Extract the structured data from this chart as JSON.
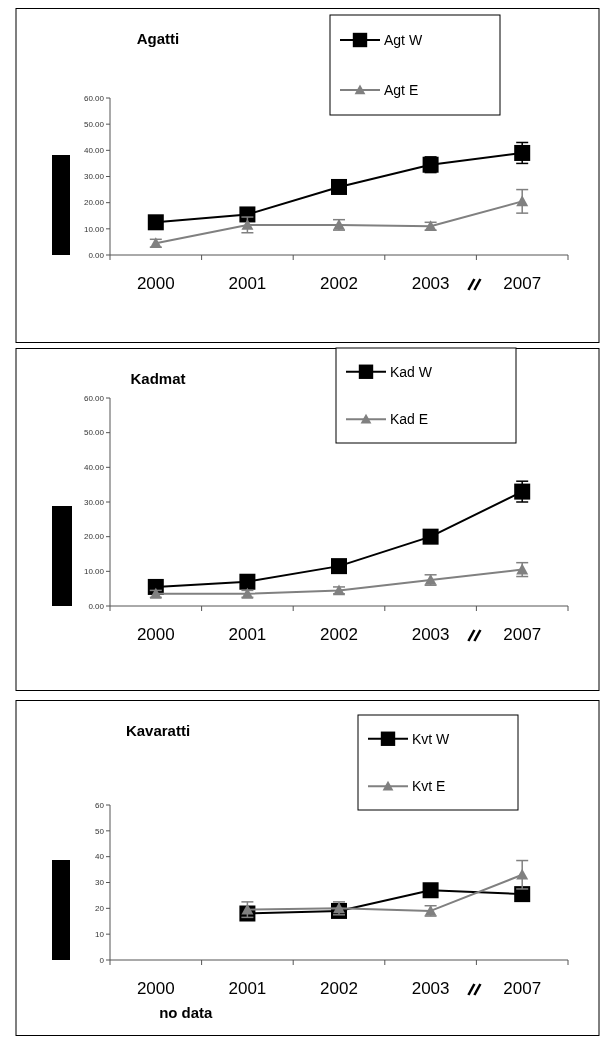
{
  "chart_data": [
    {
      "type": "line",
      "title": "Agatti",
      "categories": [
        "2000",
        "2001",
        "2002",
        "2003",
        "2007"
      ],
      "ylim": [
        0,
        60
      ],
      "yticks": [
        {
          "value": 0,
          "label": "0.00"
        },
        {
          "value": 10,
          "label": "10.00"
        },
        {
          "value": 20,
          "label": "20.00"
        },
        {
          "value": 30,
          "label": "30.00"
        },
        {
          "value": 40,
          "label": "40.00"
        },
        {
          "value": 50,
          "label": "50.00"
        },
        {
          "value": 60,
          "label": "60.00"
        }
      ],
      "legend": "top right",
      "grid": false,
      "series": [
        {
          "name": "Agt W",
          "color": "#000000",
          "marker": "square",
          "values": [
            12.5,
            15.5,
            26,
            34.5,
            39
          ],
          "errors": [
            1.5,
            1,
            2,
            3,
            4
          ]
        },
        {
          "name": "Agt E",
          "color": "#808080",
          "marker": "triangle",
          "values": [
            4.5,
            11.5,
            11.5,
            11,
            20.5
          ],
          "errors": [
            1.5,
            3,
            2,
            1.5,
            4.5
          ]
        }
      ]
    },
    {
      "type": "line",
      "title": "Kadmat",
      "categories": [
        "2000",
        "2001",
        "2002",
        "2003",
        "2007"
      ],
      "ylim": [
        0,
        60
      ],
      "yticks": [
        {
          "value": 0,
          "label": "0.00"
        },
        {
          "value": 10,
          "label": "10.00"
        },
        {
          "value": 20,
          "label": "20.00"
        },
        {
          "value": 30,
          "label": "30.00"
        },
        {
          "value": 40,
          "label": "40.00"
        },
        {
          "value": 50,
          "label": "50.00"
        },
        {
          "value": 60,
          "label": "60.00"
        }
      ],
      "legend": "top right",
      "grid": false,
      "series": [
        {
          "name": "Kad W",
          "color": "#000000",
          "marker": "square",
          "values": [
            5.5,
            7,
            11.5,
            20,
            33
          ],
          "errors": [
            1,
            1,
            1,
            1,
            3
          ]
        },
        {
          "name": "Kad E",
          "color": "#808080",
          "marker": "triangle",
          "values": [
            3.5,
            3.5,
            4.5,
            7.5,
            10.5
          ],
          "errors": [
            1,
            1,
            1,
            1.5,
            2
          ]
        }
      ]
    },
    {
      "type": "line",
      "title": "Kavaratti",
      "categories": [
        "2000",
        "2001",
        "2002",
        "2003",
        "2007"
      ],
      "ylim": [
        0,
        60
      ],
      "yticks": [
        0,
        10,
        20,
        30,
        40,
        50,
        60
      ],
      "legend": "top right",
      "grid": false,
      "annotations": [
        "no data"
      ],
      "series": [
        {
          "name": "Kvt W",
          "color": "#000000",
          "marker": "square",
          "values": [
            null,
            18,
            19,
            27,
            25.5
          ],
          "errors": [
            null,
            2,
            2,
            2.5,
            2
          ]
        },
        {
          "name": "Kvt E",
          "color": "#808080",
          "marker": "triangle",
          "values": [
            null,
            19.5,
            20,
            19,
            33
          ],
          "errors": [
            null,
            3,
            2.5,
            2,
            5.5
          ]
        }
      ]
    }
  ]
}
